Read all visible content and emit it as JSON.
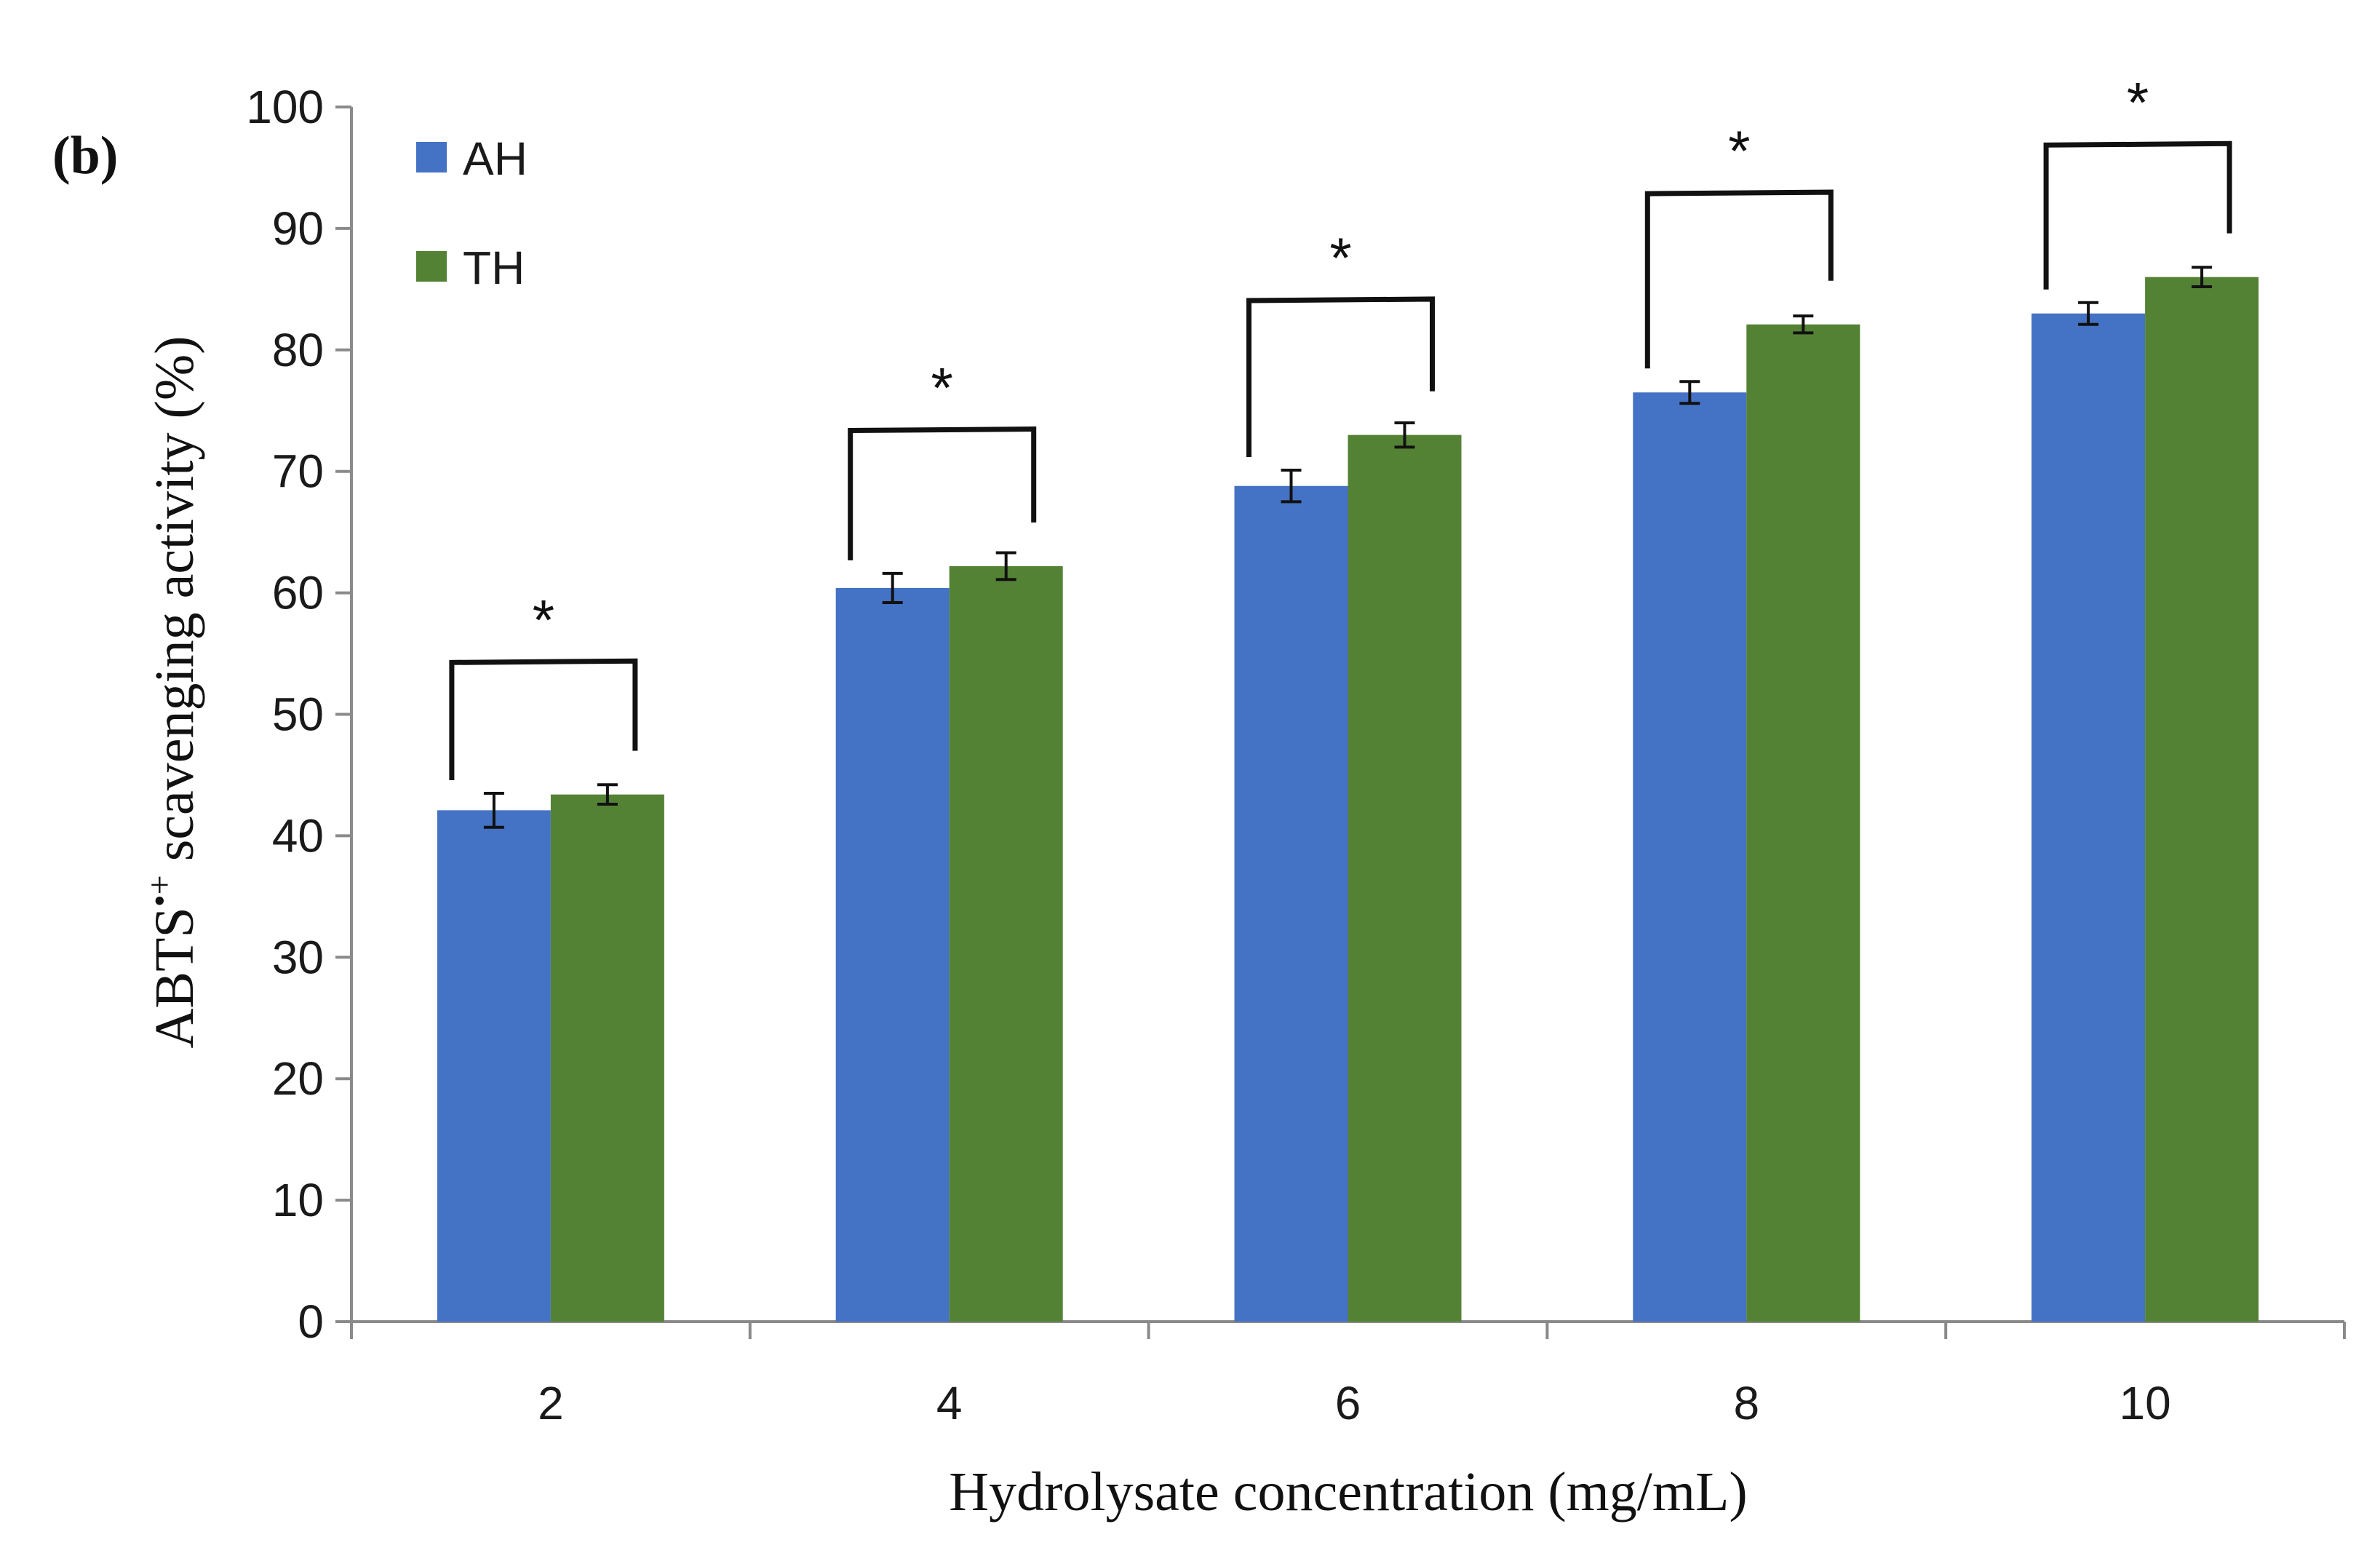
{
  "panel_label": "(b)",
  "chart_data": {
    "type": "bar",
    "title": "",
    "xlabel": "Hydrolysate concentration (mg/mL)",
    "ylabel": "ABTS•+ scavenging activity (%)",
    "ylabel_main": "ABTS",
    "ylabel_sup": "•+",
    "ylabel_rest": " scavenging activity (%)",
    "categories": [
      "2",
      "4",
      "6",
      "8",
      "10"
    ],
    "ylim": [
      0,
      100
    ],
    "yticks": [
      "0",
      "10",
      "20",
      "30",
      "40",
      "50",
      "60",
      "70",
      "80",
      "90",
      "100"
    ],
    "grid": false,
    "legend_position": "top-left",
    "series": [
      {
        "name": "AH",
        "color": "#4472C4",
        "values": [
          42.1,
          60.4,
          68.8,
          76.5,
          83.0
        ],
        "errors": [
          1.4,
          1.2,
          1.3,
          0.9,
          0.9
        ]
      },
      {
        "name": "TH",
        "color": "#548235",
        "values": [
          43.4,
          62.2,
          73.0,
          82.1,
          86.0
        ],
        "errors": [
          0.8,
          1.1,
          1.0,
          0.7,
          0.8
        ]
      }
    ],
    "annotations": [
      "*",
      "*",
      "*",
      "*",
      "*"
    ]
  }
}
